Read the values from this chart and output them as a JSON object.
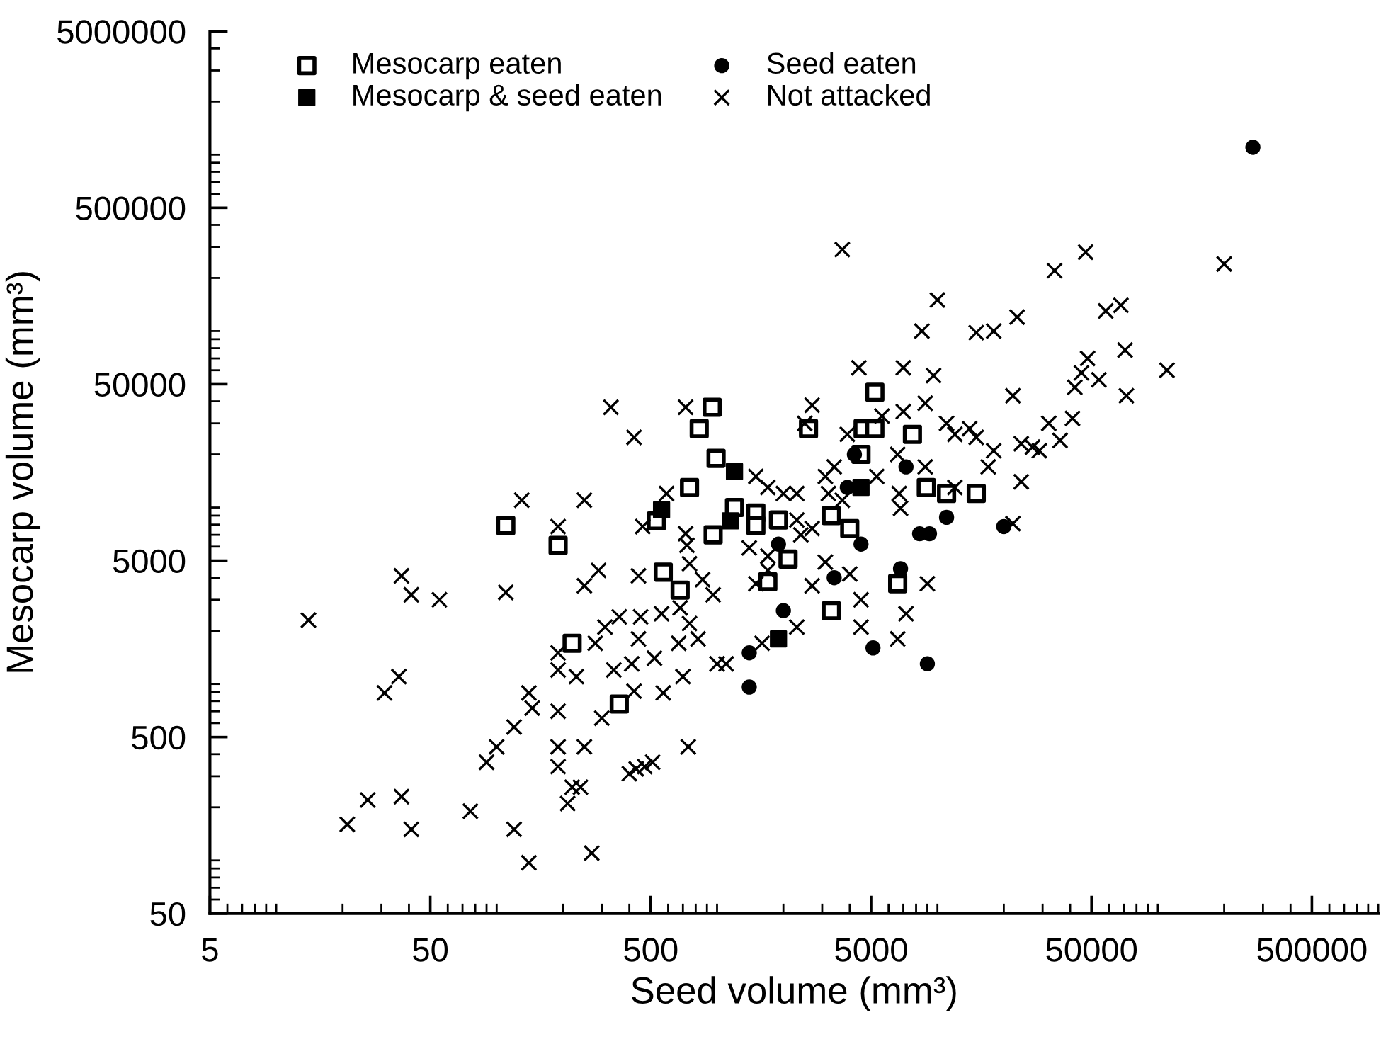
{
  "chart_data": {
    "type": "scatter",
    "xlabel": "Seed volume (mm³)",
    "ylabel": "Mesocarp volume (mm³)",
    "log": "xy",
    "xlim": [
      5,
      1000000
    ],
    "ylim": [
      50,
      5000000
    ],
    "xticks": [
      5,
      50,
      500,
      5000,
      50000,
      500000
    ],
    "yticks": [
      50,
      500,
      5000,
      50000,
      500000,
      5000000
    ],
    "grid": false,
    "legend": "top left",
    "series": [
      {
        "name": "Mesocarp eaten",
        "color": "#000000",
        "marker": "square",
        "x": [
          950,
          830,
          990,
          750,
          530,
          110,
          190,
          960,
          570,
          680,
          220,
          360,
          5200,
          4600,
          5200,
          2600,
          4500,
          7700,
          8900,
          11000,
          15000,
          3300,
          4000,
          2100,
          1700,
          3300,
          6600,
          1200,
          1500,
          1500,
          1900
        ],
        "values": [
          37000,
          28000,
          19000,
          13000,
          8400,
          7900,
          6100,
          7000,
          4300,
          3400,
          1700,
          770,
          45000,
          28000,
          28000,
          28000,
          20000,
          26000,
          13000,
          12000,
          12000,
          9000,
          7600,
          5100,
          3800,
          2600,
          3700,
          10000,
          9300,
          7900,
          8500
        ]
      },
      {
        "name": "Seed eaten",
        "color": "#000000",
        "marker": "circle",
        "x": [
          270000,
          4200,
          7200,
          3900,
          11000,
          20000,
          8300,
          9200,
          4500,
          3400,
          6800,
          5100,
          9000,
          2000,
          1400,
          1400,
          1900
        ],
        "values": [
          1100000,
          20000,
          17000,
          13000,
          8800,
          7800,
          7100,
          7100,
          6200,
          4000,
          4500,
          1600,
          1300,
          2600,
          1500,
          960,
          6200
        ]
      },
      {
        "name": "Mesocarp & seed eaten",
        "color": "#000000",
        "marker": "square",
        "x": [
          1200,
          1150,
          4500,
          1900,
          560
        ],
        "values": [
          16000,
          8400,
          13000,
          1800,
          9700
        ]
      },
      {
        "name": "Not attacked",
        "color": "#000000",
        "marker": "cross",
        "x": [
          330,
          720,
          420,
          130,
          250,
          590,
          190,
          460,
          720,
          730,
          37,
          41,
          55,
          110,
          14,
          290,
          250,
          440,
          750,
          860,
          960,
          360,
          450,
          560,
          680,
          750,
          310,
          280,
          190,
          190,
          230,
          440,
          670,
          820,
          340,
          410,
          520,
          1000,
          700,
          36,
          31,
          140,
          145,
          190,
          120,
          100,
          90,
          300,
          420,
          570,
          190,
          250,
          190,
          220,
          240,
          210,
          400,
          430,
          470,
          510,
          740,
          26,
          37,
          21,
          41,
          76,
          120,
          140,
          270,
          2700,
          2500,
          4400,
          7000,
          9600,
          22000,
          5600,
          7000,
          8800,
          3900,
          11000,
          12000,
          14000,
          15000,
          18000,
          17000,
          24000,
          24000,
          6600,
          8800,
          3400,
          3100,
          5300,
          12000,
          3200,
          3700,
          6700,
          6800,
          22000,
          2700,
          2400,
          3100,
          4000,
          9000,
          2700,
          2300,
          4500,
          4500,
          7200,
          6600,
          1600,
          1100,
          1700,
          1700,
          1400,
          1500,
          2300,
          2000,
          1500,
          1700,
          2300,
          47000,
          34000,
          200000,
          10000,
          8500,
          15000,
          18000,
          23000,
          58000,
          68000,
          48000,
          71000,
          45000,
          42000,
          54000,
          72000,
          110000,
          41000,
          32000,
          36000,
          29000,
          27000,
          3700
        ],
        "values": [
          37000,
          37000,
          25000,
          11000,
          11000,
          12000,
          7800,
          7800,
          7100,
          6100,
          4100,
          3200,
          3000,
          3300,
          2300,
          4400,
          3600,
          4100,
          4800,
          3900,
          3200,
          2400,
          2400,
          2500,
          2700,
          2200,
          2100,
          1700,
          1500,
          1200,
          1100,
          1800,
          1700,
          1800,
          1200,
          1300,
          1400,
          1300,
          1100,
          1100,
          890,
          890,
          730,
          700,
          570,
          440,
          360,
          640,
          910,
          890,
          440,
          440,
          340,
          260,
          260,
          210,
          310,
          330,
          340,
          360,
          440,
          220,
          230,
          160,
          150,
          190,
          150,
          97,
          110,
          38000,
          30000,
          62000,
          62000,
          56000,
          43000,
          33000,
          35000,
          39000,
          26000,
          30000,
          26000,
          28000,
          25000,
          21000,
          17000,
          23000,
          14000,
          20000,
          17000,
          17000,
          15000,
          15000,
          13000,
          12000,
          11000,
          12000,
          9900,
          8100,
          7600,
          7000,
          4900,
          4200,
          3700,
          3600,
          2100,
          3000,
          2100,
          2500,
          1800,
          1700,
          1300,
          5300,
          4400,
          5900,
          3700,
          12000,
          12000,
          15000,
          13000,
          8500,
          280000,
          220000,
          240000,
          150000,
          100000,
          98000,
          100000,
          120000,
          130000,
          140000,
          70000,
          78000,
          58000,
          48000,
          53000,
          43000,
          60000,
          32000,
          30000,
          24000,
          21000,
          22000,
          290000
        ]
      }
    ]
  }
}
